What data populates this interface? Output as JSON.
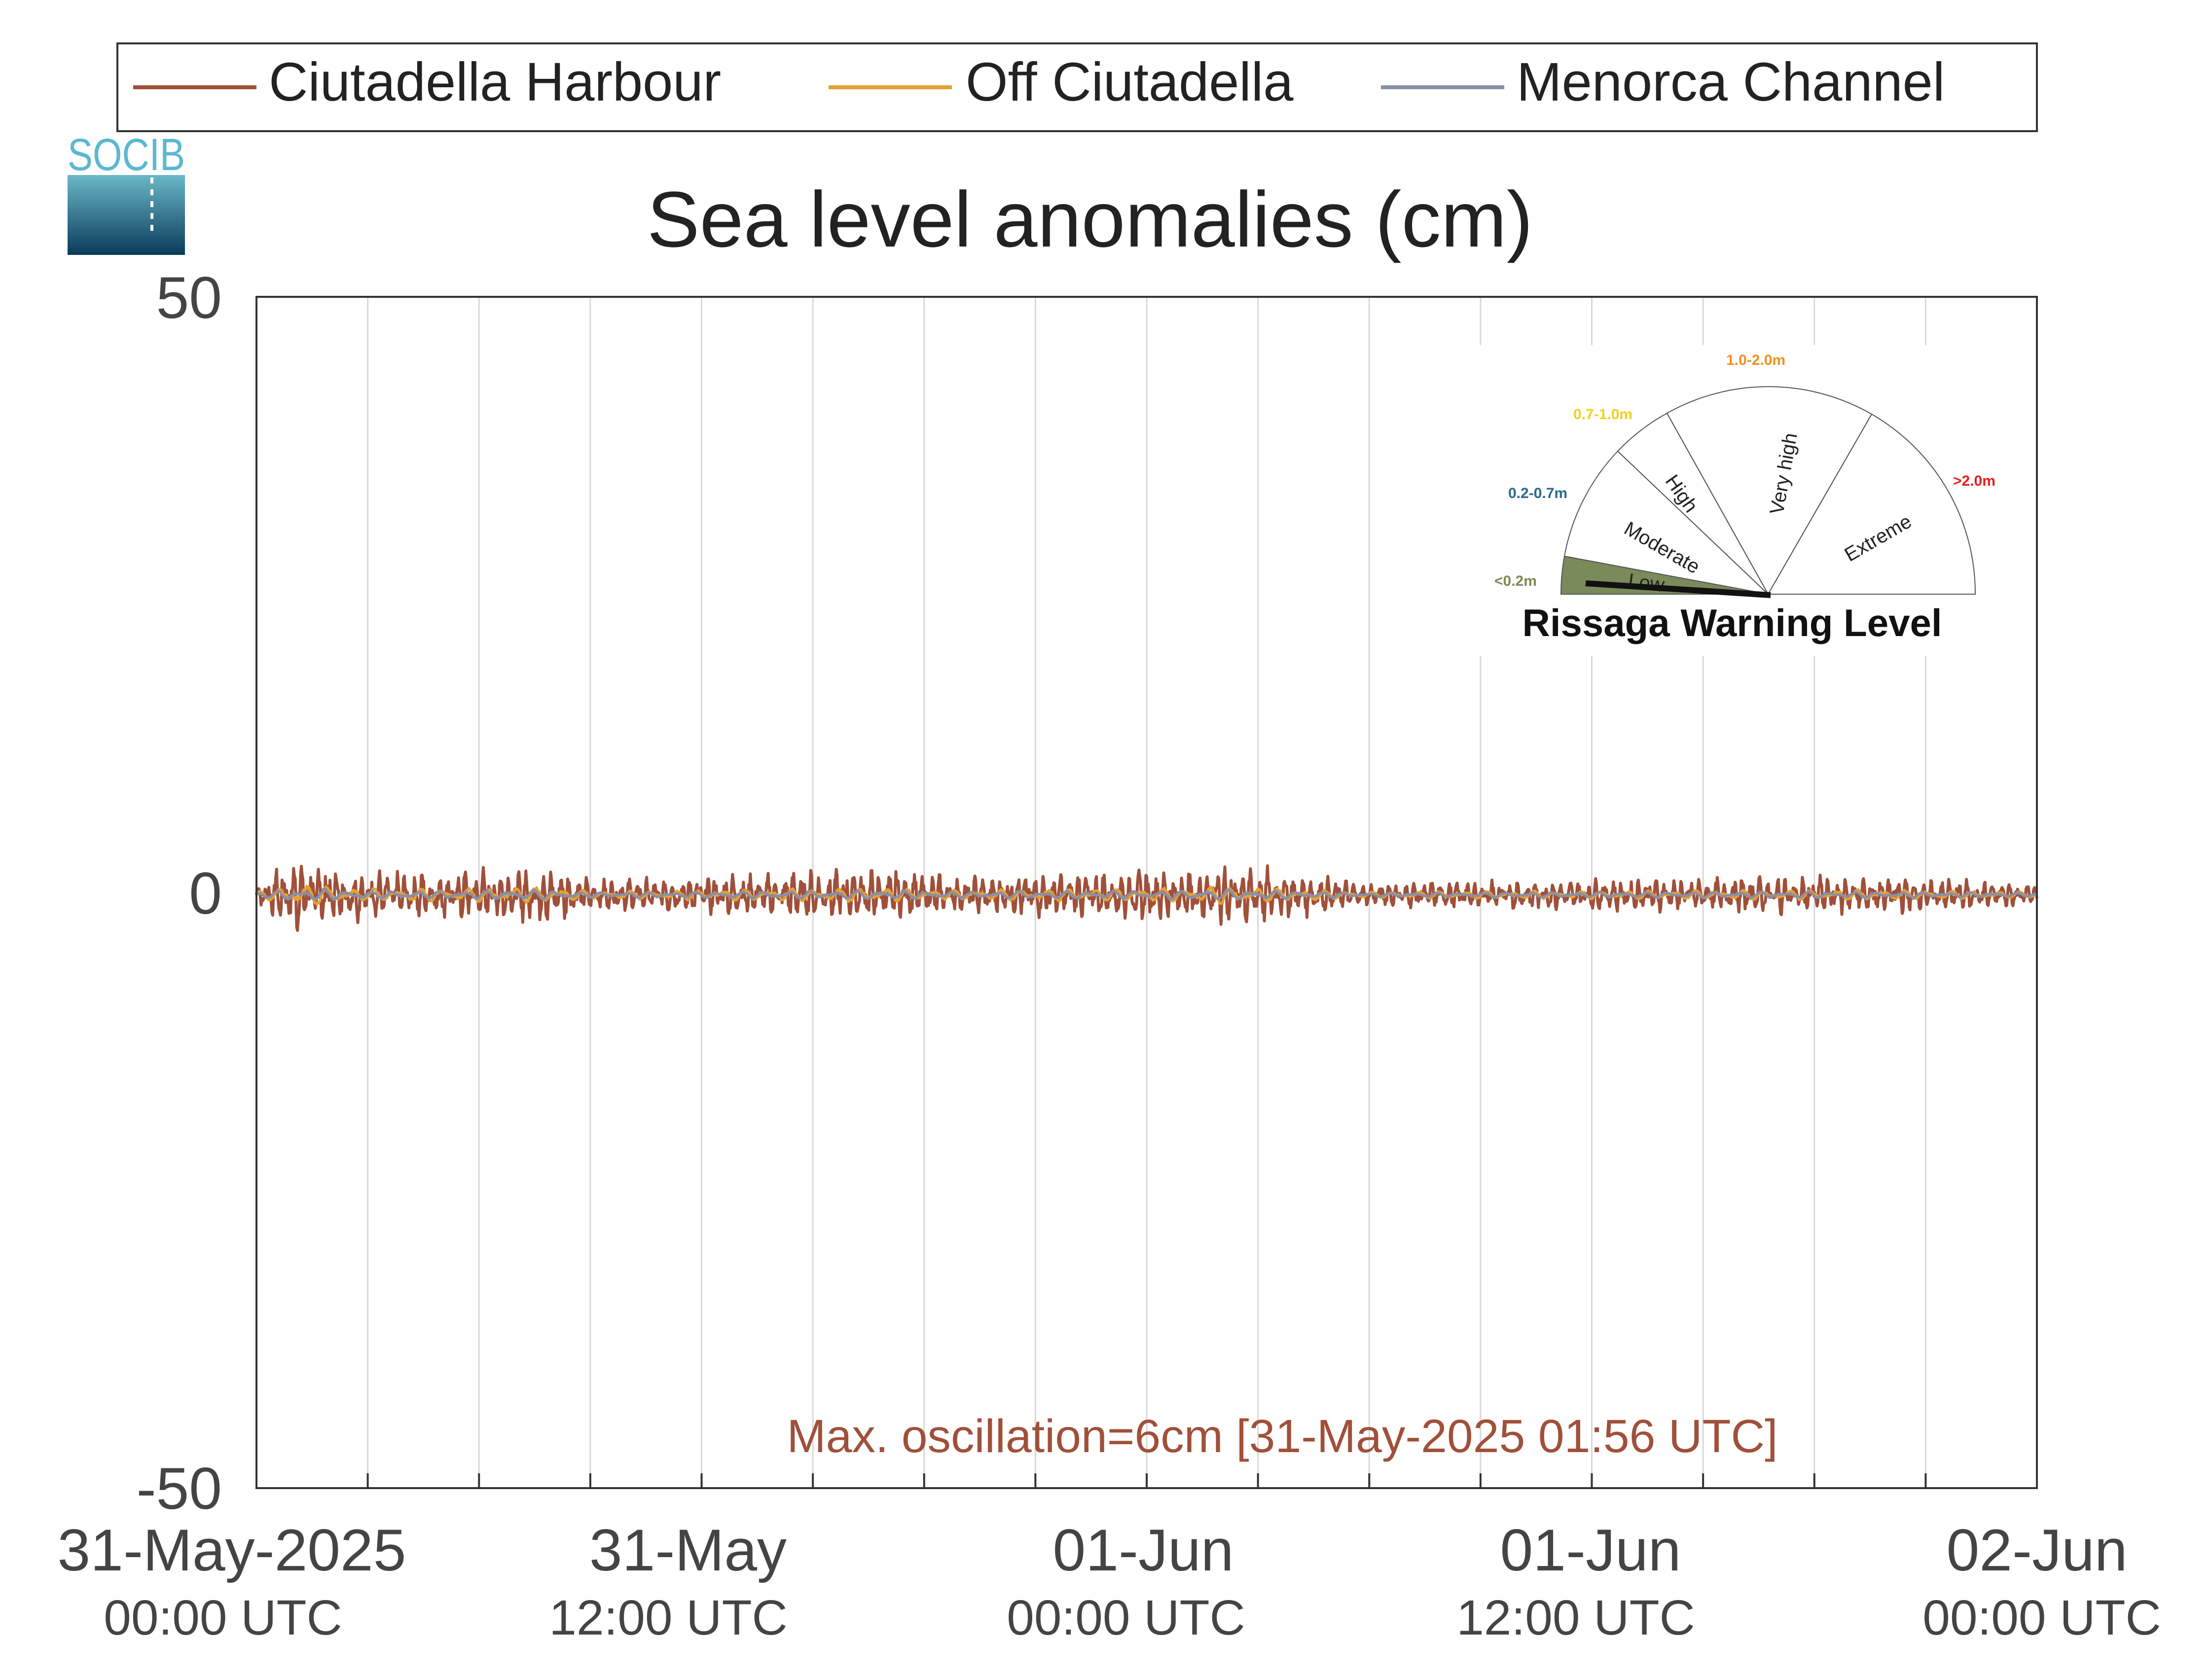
{
  "chart_data": {
    "type": "line",
    "title": "Sea level anomalies (cm)",
    "ylim": [
      -50,
      50
    ],
    "yticks": [
      "50",
      "0",
      "-50"
    ],
    "xlim": [
      "2025-05-31T00:00",
      "2025-06-02T00:00"
    ],
    "grid": true,
    "legend_position": "top",
    "xticks": [
      {
        "date": "31-May-2025",
        "time": "00:00 UTC"
      },
      {
        "date": "31-May",
        "time": "12:00 UTC"
      },
      {
        "date": "01-Jun",
        "time": "00:00 UTC"
      },
      {
        "date": "01-Jun",
        "time": "12:00 UTC"
      },
      {
        "date": "02-Jun",
        "time": "00:00 UTC"
      }
    ],
    "annotation": "Max. oscillation=6cm [31-May-2025 01:56 UTC]",
    "series": [
      {
        "name": "Ciutadella Harbour",
        "color": "#a0503a",
        "amplitude_cm": 2.5
      },
      {
        "name": "Off Ciutadella",
        "color": "#e8a030",
        "amplitude_cm": 0.8
      },
      {
        "name": "Menorca Channel",
        "color": "#8890a8",
        "amplitude_cm": 0.5
      }
    ],
    "envelope_times": [
      "2025-05-31T00:00",
      "2025-05-31T01:00",
      "2025-05-31T02:00",
      "2025-05-31T03:00",
      "2025-05-31T06:00",
      "2025-05-31T08:00",
      "2025-05-31T09:00",
      "2025-05-31T12:00",
      "2025-05-31T14:00",
      "2025-05-31T17:00",
      "2025-05-31T19:00",
      "2025-05-31T22:00",
      "2025-06-01T01:00",
      "2025-06-01T02:00",
      "2025-06-01T06:00",
      "2025-06-01T10:00",
      "2025-06-01T12:00",
      "2025-06-01T18:00",
      "2025-06-01T20:00",
      "2025-06-02T00:00"
    ]
  },
  "logo": {
    "text": "SOCIB"
  },
  "warning_gauge": {
    "title": "Rissaga Warning Level",
    "current_level": "Low",
    "levels": [
      {
        "label": "Low",
        "range": "<0.2m",
        "color": "#7a8a50"
      },
      {
        "label": "Moderate",
        "range": "0.2-0.7m",
        "color": "#2a6a8a"
      },
      {
        "label": "High",
        "range": "0.7-1.0m",
        "color": "#f0d020"
      },
      {
        "label": "Very high",
        "range": "1.0-2.0m",
        "color": "#f09020"
      },
      {
        "label": "Extreme",
        "range": ">2.0m",
        "color": "#e02020"
      }
    ]
  }
}
